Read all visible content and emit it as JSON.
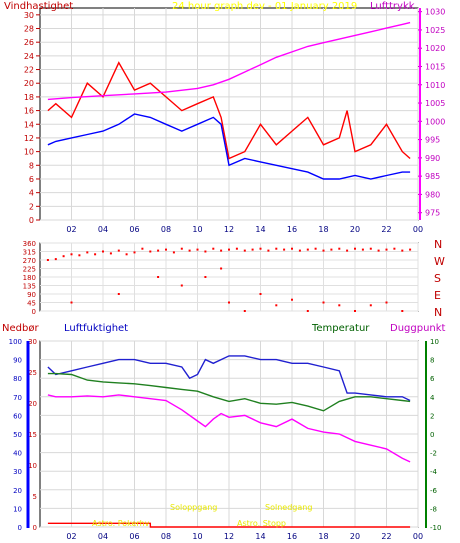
{
  "chart_data": [
    {
      "type": "line",
      "title": "24 hour graph dev - 01 January 2019",
      "left_label": "Vindhastighet",
      "right_label": "Lufttrykk",
      "x_ticks": [
        "02",
        "04",
        "06",
        "08",
        "10",
        "12",
        "14",
        "16",
        "18",
        "20",
        "22",
        "00"
      ],
      "y_left_ticks": [
        "0",
        "2",
        "4",
        "6",
        "8",
        "10",
        "12",
        "14",
        "16",
        "18",
        "20",
        "22",
        "24",
        "26",
        "28",
        "30"
      ],
      "y_right_ticks": [
        "975",
        "980",
        "985",
        "990",
        "995",
        "1000",
        "1005",
        "1010",
        "1015",
        "1020",
        "1025",
        "1030"
      ],
      "y_left_range": [
        0,
        31
      ],
      "y_right_range": [
        973,
        1031
      ],
      "colors": {
        "gust": "#ff0000",
        "average": "#0000ff",
        "pressure": "#ff00ff",
        "title": "#ffff00"
      },
      "series": [
        {
          "x": [
            0.5,
            1,
            2,
            3,
            4,
            5,
            6,
            7,
            8,
            9,
            10,
            11,
            11.5,
            12,
            13,
            14,
            15,
            16,
            17,
            18,
            19,
            19.5,
            20,
            21,
            22,
            23,
            23.5
          ],
          "values": [
            16,
            17,
            15,
            20,
            18,
            23,
            19,
            20,
            18,
            16,
            17,
            18,
            15,
            9,
            10,
            14,
            11,
            13,
            15,
            11,
            12,
            16,
            10,
            11,
            14,
            10,
            9
          ]
        },
        {
          "x": [
            0.5,
            1,
            2,
            3,
            4,
            5,
            6,
            7,
            8,
            9,
            10,
            11,
            11.5,
            12,
            13,
            14,
            15,
            16,
            17,
            18,
            19,
            20,
            21,
            22,
            23,
            23.5
          ],
          "values": [
            11,
            11.5,
            12,
            12.5,
            13,
            14,
            15.5,
            15,
            14,
            13,
            14,
            15,
            14,
            8,
            9,
            8.5,
            8,
            7.5,
            7,
            6,
            6,
            6.5,
            6,
            6.5,
            7,
            7
          ]
        },
        {
          "x": [
            0.5,
            2,
            4,
            6,
            8,
            10,
            11,
            12,
            13,
            14,
            15,
            16,
            17,
            18,
            19,
            20,
            21,
            22,
            23,
            23.5
          ],
          "values": [
            1006,
            1006.5,
            1007,
            1007.5,
            1008,
            1009,
            1010,
            1011.5,
            1013.5,
            1015.5,
            1017.5,
            1019,
            1020.5,
            1021.5,
            1022.5,
            1023.5,
            1024.5,
            1025.5,
            1026.5,
            1027
          ]
        }
      ]
    },
    {
      "type": "scatter",
      "right_ticks": [
        "N",
        "W",
        "S",
        "E",
        "N"
      ],
      "y_ticks": [
        "0",
        "45",
        "90",
        "135",
        "180",
        "225",
        "270",
        "315",
        "360"
      ],
      "y_range": [
        0,
        360
      ],
      "x_ticks": [
        "02",
        "04",
        "06",
        "08",
        "10",
        "12",
        "14",
        "16",
        "18",
        "20",
        "22",
        "00"
      ],
      "color": "#ff0000",
      "series": [
        {
          "x": [
            0.5,
            1,
            1.5,
            2,
            2.5,
            3,
            3.5,
            4,
            4.5,
            5,
            5.5,
            6,
            6.5,
            7,
            7.5,
            8,
            8.5,
            9,
            9.5,
            10,
            10.5,
            11,
            11.5,
            12,
            12.5,
            13,
            13.5,
            14,
            14.5,
            15,
            15.5,
            16,
            16.5,
            17,
            17.5,
            18,
            18.5,
            19,
            19.5,
            20,
            20.5,
            21,
            21.5,
            22,
            22.5,
            23,
            23.5
          ],
          "values": [
            270,
            275,
            290,
            300,
            295,
            310,
            300,
            315,
            305,
            320,
            300,
            310,
            330,
            315,
            320,
            325,
            310,
            330,
            320,
            325,
            315,
            330,
            320,
            325,
            330,
            320,
            325,
            330,
            320,
            330,
            325,
            330,
            320,
            325,
            330,
            320,
            325,
            330,
            320,
            330,
            325,
            330,
            320,
            325,
            330,
            320,
            325
          ]
        },
        {
          "x": [
            2,
            5,
            7.5,
            9,
            10.5,
            11.5,
            12,
            13,
            14,
            15,
            16,
            17,
            18,
            19,
            20,
            21,
            22,
            23
          ],
          "values": [
            45,
            90,
            180,
            135,
            180,
            225,
            45,
            0,
            90,
            30,
            60,
            0,
            45,
            30,
            0,
            30,
            45,
            0
          ]
        }
      ]
    },
    {
      "type": "line",
      "labels": {
        "precipitation": "Nedbør",
        "humidity": "Luftfuktighet",
        "temperature": "Temperatur",
        "dewpoint": "Duggpunkt"
      },
      "x_ticks": [
        "02",
        "04",
        "06",
        "08",
        "10",
        "12",
        "14",
        "16",
        "18",
        "20",
        "22",
        "00"
      ],
      "humidity_ticks": [
        "0",
        "10",
        "20",
        "30",
        "40",
        "50",
        "60",
        "70",
        "80",
        "90",
        "100"
      ],
      "precip_ticks": [
        "0",
        "5",
        "10",
        "15",
        "20",
        "25",
        "30"
      ],
      "temp_ticks": [
        "-10",
        "-8",
        "-6",
        "-4",
        "-2",
        "0",
        "2",
        "4",
        "6",
        "8",
        "10"
      ],
      "humidity_range": [
        0,
        100
      ],
      "precip_range": [
        0,
        30
      ],
      "temp_range": [
        -10,
        10
      ],
      "colors": {
        "humidity": "#2020d0",
        "temperature": "#208020",
        "dewpoint": "#ff00ff",
        "precipitation": "#ff0000"
      },
      "annotations": {
        "sunrise": "Soloppgang",
        "sunset": "Solnedgang",
        "astro_rise": "Astro. Pokerhv",
        "astro_set": "Astro. Stopp"
      },
      "series": [
        {
          "name": "Luftfuktighet",
          "x": [
            0.5,
            1,
            2,
            3,
            4,
            5,
            6,
            7,
            8,
            9,
            9.5,
            10,
            10.5,
            11,
            12,
            13,
            14,
            15,
            16,
            17,
            18,
            19,
            19.5,
            20,
            21,
            22,
            23,
            23.5
          ],
          "values": [
            86,
            82,
            84,
            86,
            88,
            90,
            90,
            88,
            88,
            86,
            80,
            82,
            90,
            88,
            92,
            92,
            90,
            90,
            88,
            88,
            86,
            84,
            72,
            72,
            71,
            70,
            70,
            68
          ]
        },
        {
          "name": "Temperatur",
          "x": [
            0.5,
            1,
            2,
            3,
            4,
            5,
            6,
            7,
            8,
            9,
            10,
            11,
            12,
            13,
            14,
            15,
            16,
            17,
            18,
            19,
            20,
            21,
            22,
            23,
            23.5
          ],
          "values": [
            6.5,
            6.5,
            6.4,
            5.8,
            5.6,
            5.5,
            5.4,
            5.2,
            5,
            4.8,
            4.6,
            4,
            3.5,
            3.8,
            3.3,
            3.2,
            3.4,
            3,
            2.5,
            3.5,
            4,
            4,
            3.8,
            3.6,
            3.5
          ]
        },
        {
          "name": "Duggpunkt",
          "x": [
            0.5,
            1,
            2,
            3,
            4,
            5,
            6,
            7,
            8,
            9,
            10,
            10.5,
            11,
            11.5,
            12,
            13,
            14,
            15,
            16,
            17,
            18,
            19,
            20,
            21,
            22,
            23,
            23.5
          ],
          "values": [
            4.2,
            4,
            4,
            4.1,
            4,
            4.2,
            4,
            3.8,
            3.6,
            2.6,
            1.4,
            0.8,
            1.6,
            2.2,
            1.8,
            2,
            1.2,
            0.8,
            1.6,
            0.6,
            0.2,
            0,
            -0.8,
            -1.2,
            -1.6,
            -2.6,
            -3
          ]
        },
        {
          "name": "Nedbør",
          "x": [
            0.5,
            7,
            7.01,
            23.5
          ],
          "values": [
            0.6,
            0.6,
            0,
            0
          ]
        }
      ]
    }
  ]
}
